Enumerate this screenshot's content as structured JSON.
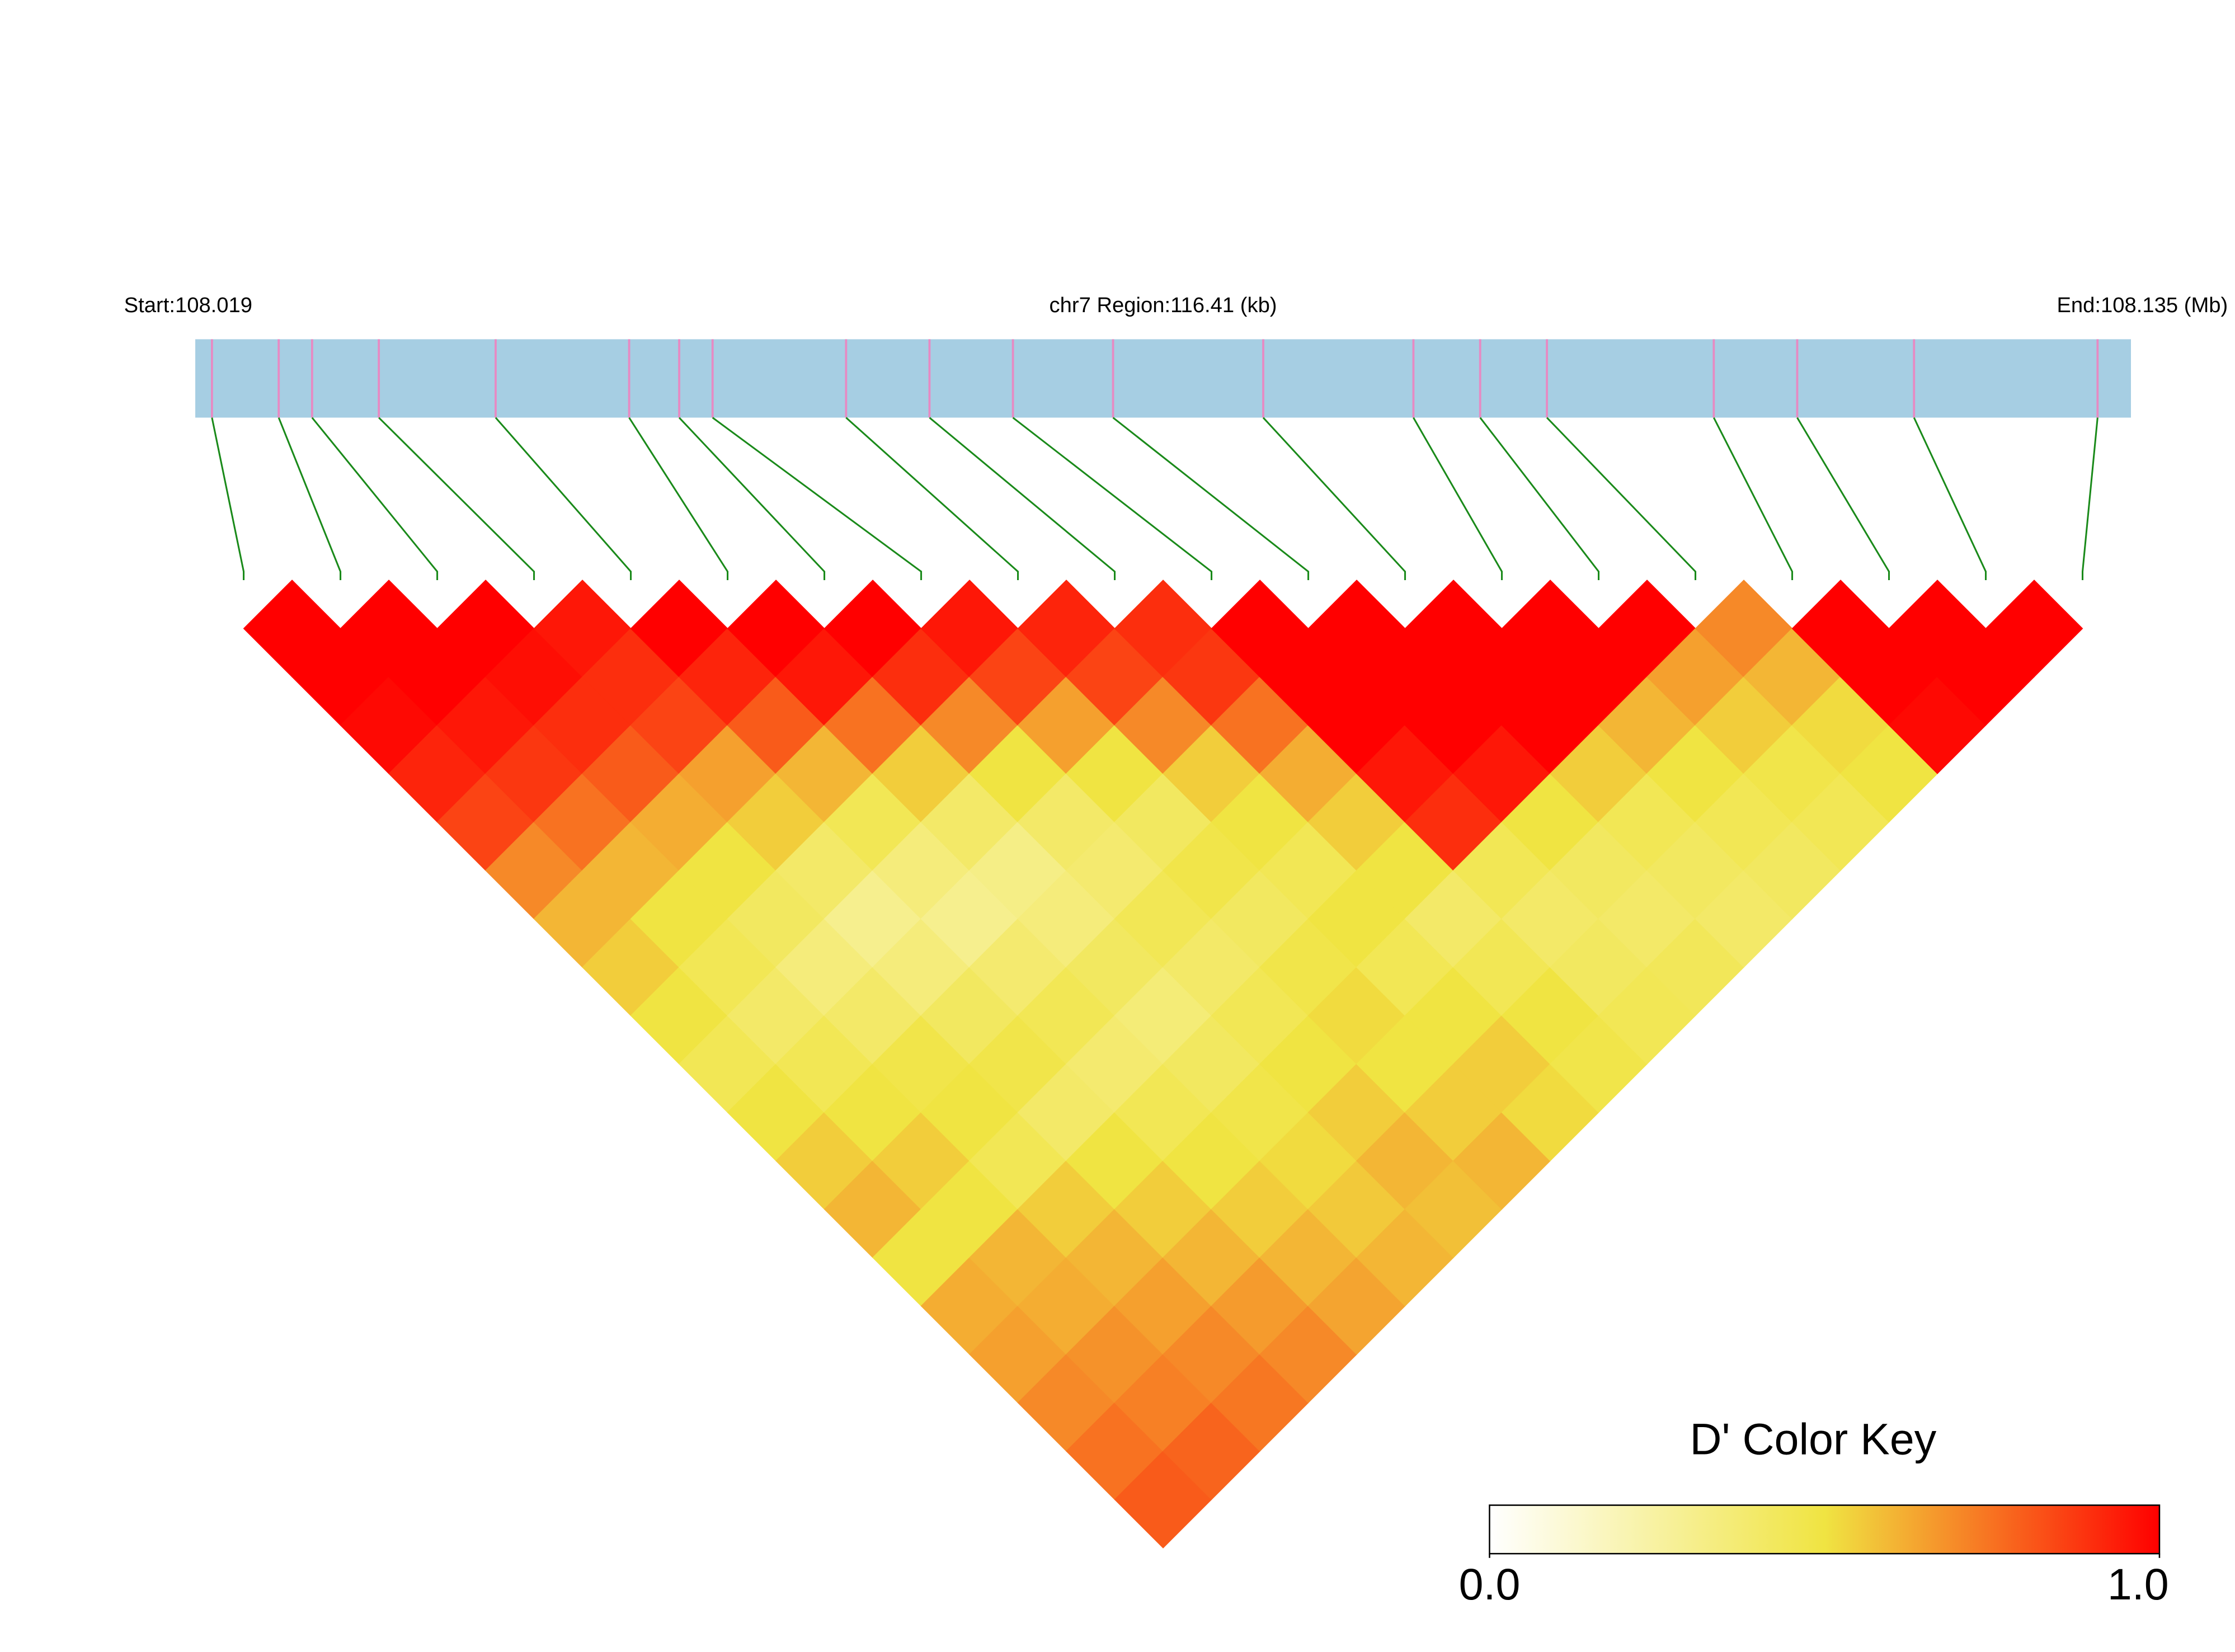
{
  "chart_data": {
    "type": "ld_heatmap",
    "start_label": "Start:108.019",
    "region_label": "chr7 Region:116.41 (kb)",
    "end_label": "End:108.135 (Mb)",
    "legend_title": "D' Color Key",
    "xlim": [
      108.019,
      108.135
    ],
    "snp_positions": [
      108.02,
      108.024,
      108.026,
      108.03,
      108.037,
      108.045,
      108.048,
      108.05,
      108.058,
      108.063,
      108.068,
      108.074,
      108.083,
      108.092,
      108.096,
      108.1,
      108.11,
      108.115,
      108.122,
      108.133
    ],
    "track_color": "#a6cee3",
    "snp_color": "#e78ac3",
    "link_color": "#1a8a1a",
    "colorscale": [
      "#ffffff",
      "#f0e442",
      "#ff0000"
    ],
    "zlim": [
      0,
      1
    ],
    "colorbar_ticks": [
      {
        "value": 0,
        "label": "0.0"
      },
      {
        "value": 1,
        "label": "1.0"
      }
    ],
    "values": [
      [
        1,
        1,
        0.98,
        0.92,
        0.85,
        0.7,
        0.6,
        0.55,
        0.5,
        0.45,
        0.5,
        0.55,
        0.6,
        0.5,
        0.62,
        0.65,
        0.7,
        0.75,
        0.8
      ],
      [
        1,
        1,
        0.95,
        0.88,
        0.75,
        0.6,
        0.5,
        0.45,
        0.4,
        0.45,
        0.5,
        0.55,
        0.5,
        0.6,
        0.62,
        0.68,
        0.72,
        0.78
      ],
      [
        1,
        0.97,
        0.9,
        0.8,
        0.62,
        0.5,
        0.42,
        0.35,
        0.4,
        0.48,
        0.5,
        0.45,
        0.55,
        0.6,
        0.65,
        0.7,
        0.74
      ],
      [
        0.95,
        0.9,
        0.85,
        0.65,
        0.55,
        0.4,
        0.3,
        0.35,
        0.42,
        0.48,
        0.4,
        0.5,
        0.55,
        0.6,
        0.66,
        0.7
      ],
      [
        1,
        0.92,
        0.8,
        0.6,
        0.45,
        0.35,
        0.3,
        0.38,
        0.45,
        0.38,
        0.45,
        0.5,
        0.55,
        0.6,
        0.64
      ],
      [
        1,
        0.95,
        0.75,
        0.55,
        0.4,
        0.32,
        0.35,
        0.42,
        0.36,
        0.42,
        0.48,
        0.52,
        0.56,
        0.6
      ],
      [
        1,
        0.9,
        0.7,
        0.5,
        0.4,
        0.38,
        0.45,
        0.4,
        0.45,
        0.5,
        0.55,
        0.6,
        0.58
      ],
      [
        0.95,
        0.85,
        0.65,
        0.5,
        0.42,
        0.48,
        0.42,
        0.48,
        0.52,
        0.5,
        0.55,
        0.6
      ],
      [
        0.92,
        0.85,
        0.7,
        0.55,
        0.5,
        0.45,
        0.5,
        0.45,
        0.5,
        0.55,
        0.52
      ],
      [
        0.9,
        0.88,
        0.75,
        0.62,
        0.55,
        0.5,
        0.4,
        0.45,
        0.5,
        0.48
      ],
      [
        1,
        1,
        1,
        0.95,
        0.9,
        0.45,
        0.4,
        0.42,
        0.45
      ],
      [
        1,
        1,
        1,
        0.95,
        0.5,
        0.42,
        0.4,
        0.44
      ],
      [
        1,
        1,
        1,
        0.55,
        0.45,
        0.42,
        0.4
      ],
      [
        1,
        1,
        0.6,
        0.5,
        0.45,
        0.42
      ],
      [
        1,
        0.65,
        0.55,
        0.48,
        0.45
      ],
      [
        0.7,
        0.6,
        0.52,
        0.5
      ],
      [
        1,
        1,
        0.98
      ],
      [
        1,
        1
      ],
      [
        1
      ]
    ]
  }
}
